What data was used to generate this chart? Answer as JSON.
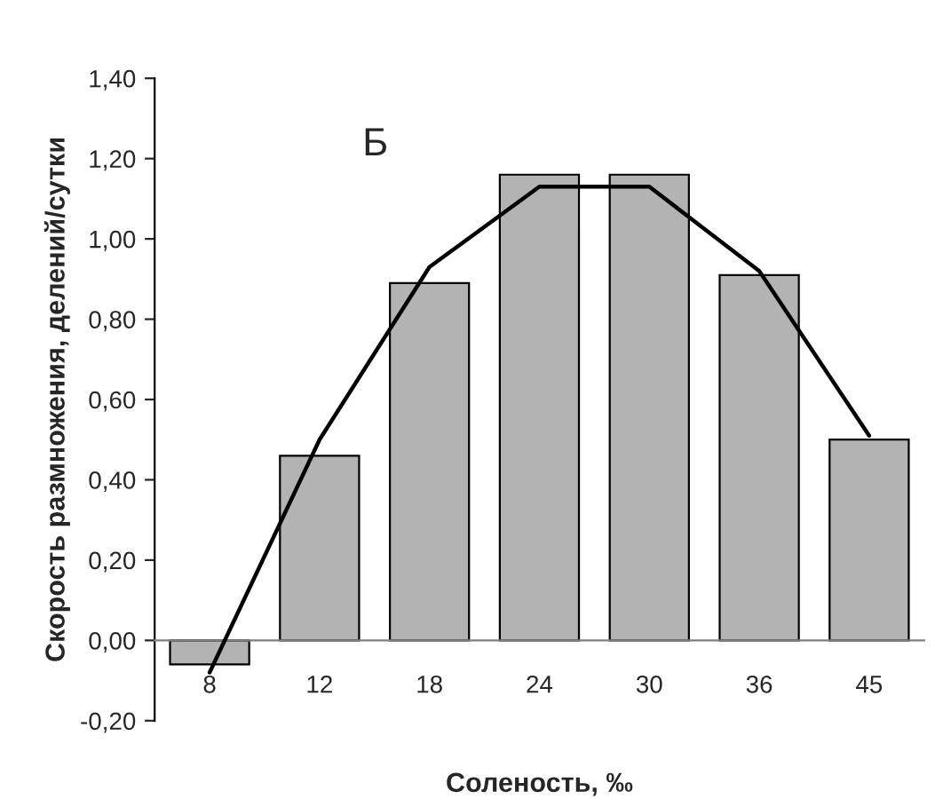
{
  "chart_data": {
    "type": "bar",
    "xlabel": "Соленость, ‰",
    "ylabel": "Скорость размножения, делений/сутки",
    "annotations": [
      "Б"
    ],
    "categories": [
      "8",
      "12",
      "18",
      "24",
      "30",
      "36",
      "45"
    ],
    "series": [
      {
        "color": "#b3b3b3",
        "values": [
          -0.06,
          0.46,
          0.89,
          1.16,
          1.16,
          0.91,
          0.5
        ]
      },
      {
        "type": "line",
        "color": "#000000",
        "values": [
          -0.08,
          0.5,
          0.93,
          1.13,
          1.13,
          0.92,
          0.51
        ]
      }
    ],
    "ylim": [
      -0.2,
      1.4
    ],
    "yticks": [
      {
        "value": -0.2,
        "label": "-0,20"
      },
      {
        "value": 0,
        "label": "0,00"
      },
      {
        "value": 0.2,
        "label": "0,20"
      },
      {
        "value": 0.4,
        "label": "0,40"
      },
      {
        "value": 0.6,
        "label": "0,60"
      },
      {
        "value": 0.8,
        "label": "0,80"
      },
      {
        "value": 1.0,
        "label": "1,00"
      },
      {
        "value": 1.2,
        "label": "1,20"
      },
      {
        "value": 1.4,
        "label": "1,40"
      }
    ],
    "grid": false,
    "legend": false
  }
}
